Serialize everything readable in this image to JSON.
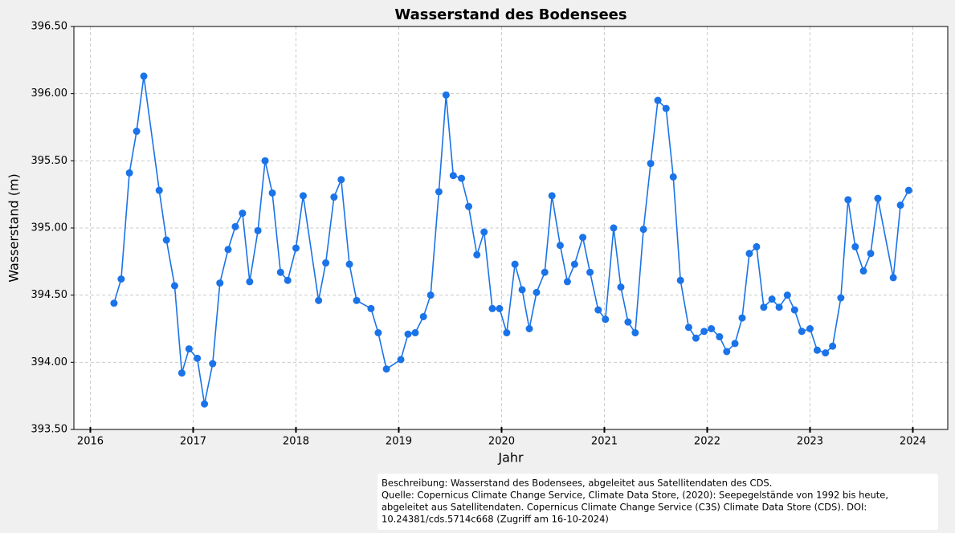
{
  "chart_data": {
    "type": "line",
    "title": "Wasserstand des Bodensees",
    "xlabel": "Jahr",
    "ylabel": "Wasserstand (m)",
    "caption": [
      "Beschreibung: Wasserstand des Bodensees, abgeleitet aus Satellitendaten des CDS.",
      "Quelle: Copernicus Climate Change Service, Climate Data Store, (2020): Seepegelstände von 1992 bis heute,",
      "abgeleitet aus Satellitendaten. Copernicus Climate Change Service (C3S) Climate Data Store (CDS). DOI:",
      "10.24381/cds.5714c668 (Zugriff am 16-10-2024)"
    ],
    "x": [
      2016.23,
      2016.3,
      2016.38,
      2016.45,
      2016.52,
      2016.67,
      2016.74,
      2016.82,
      2016.89,
      2016.96,
      2017.04,
      2017.11,
      2017.19,
      2017.26,
      2017.34,
      2017.41,
      2017.48,
      2017.55,
      2017.63,
      2017.7,
      2017.77,
      2017.85,
      2017.92,
      2018.0,
      2018.07,
      2018.22,
      2018.29,
      2018.37,
      2018.44,
      2018.52,
      2018.59,
      2018.73,
      2018.8,
      2018.88,
      2019.02,
      2019.09,
      2019.16,
      2019.24,
      2019.31,
      2019.39,
      2019.46,
      2019.53,
      2019.61,
      2019.68,
      2019.76,
      2019.83,
      2019.91,
      2019.98,
      2020.05,
      2020.13,
      2020.2,
      2020.27,
      2020.34,
      2020.42,
      2020.49,
      2020.57,
      2020.64,
      2020.71,
      2020.79,
      2020.86,
      2020.94,
      2021.01,
      2021.09,
      2021.16,
      2021.23,
      2021.3,
      2021.38,
      2021.45,
      2021.52,
      2021.6,
      2021.67,
      2021.74,
      2021.82,
      2021.89,
      2021.97,
      2022.04,
      2022.12,
      2022.19,
      2022.27,
      2022.34,
      2022.41,
      2022.48,
      2022.55,
      2022.63,
      2022.7,
      2022.78,
      2022.85,
      2022.92,
      2023.0,
      2023.07,
      2023.15,
      2023.22,
      2023.3,
      2023.37,
      2023.44,
      2023.52,
      2023.59,
      2023.66,
      2023.81,
      2023.88,
      2023.96
    ],
    "series": [
      {
        "name": "Wasserstand",
        "color": "#1a73e8",
        "values": [
          394.44,
          394.62,
          395.41,
          395.72,
          396.13,
          395.28,
          394.91,
          394.57,
          393.92,
          394.1,
          394.03,
          393.69,
          393.99,
          394.59,
          394.84,
          395.01,
          395.11,
          394.6,
          394.98,
          395.5,
          395.26,
          394.67,
          394.61,
          394.85,
          395.24,
          394.46,
          394.74,
          395.23,
          395.36,
          394.73,
          394.46,
          394.4,
          394.22,
          393.95,
          394.02,
          394.21,
          394.22,
          394.34,
          394.5,
          395.27,
          395.99,
          395.39,
          395.37,
          395.16,
          394.8,
          394.97,
          394.4,
          394.4,
          394.22,
          394.73,
          394.54,
          394.25,
          394.52,
          394.67,
          395.24,
          394.87,
          394.6,
          394.73,
          394.93,
          394.67,
          394.39,
          394.32,
          395.0,
          394.56,
          394.3,
          394.22,
          394.99,
          395.48,
          395.95,
          395.89,
          395.38,
          394.61,
          394.26,
          394.18,
          394.23,
          394.25,
          394.19,
          394.08,
          394.14,
          394.33,
          394.81,
          394.86,
          394.41,
          394.47,
          394.41,
          394.5,
          394.39,
          394.23,
          394.25,
          394.09,
          394.07,
          394.12,
          394.48,
          395.21,
          394.86,
          394.68,
          394.81,
          395.22,
          394.63,
          395.17,
          395.28
        ]
      }
    ],
    "xlim": [
      2015.84,
      2024.34
    ],
    "xticks": [
      2016,
      2017,
      2018,
      2019,
      2020,
      2021,
      2022,
      2023,
      2024
    ],
    "ylim": [
      393.5,
      396.5
    ],
    "yticks": [
      {
        "value": 393.5,
        "label": "393.50"
      },
      {
        "value": 394,
        "label": "394.00"
      },
      {
        "value": 394.5,
        "label": "394.50"
      },
      {
        "value": 395,
        "label": "395.00"
      },
      {
        "value": 395.5,
        "label": "395.50"
      },
      {
        "value": 396,
        "label": "396.00"
      },
      {
        "value": 396.5,
        "label": "396.50"
      }
    ],
    "grid": true
  }
}
